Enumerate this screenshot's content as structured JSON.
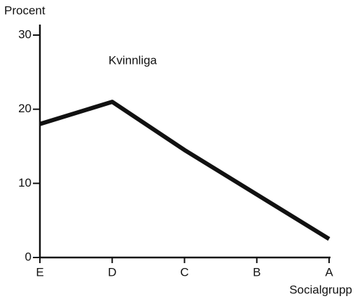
{
  "chart_data": {
    "type": "line",
    "y_label": "Procent",
    "x_label": "Socialgrupp",
    "annotation": "Kvinnliga",
    "categories": [
      "E",
      "D",
      "C",
      "B",
      "A"
    ],
    "series": [
      {
        "name": "Kvinnliga",
        "color": "#111111",
        "values": [
          18,
          21,
          14.5,
          8.5,
          2.5
        ]
      }
    ],
    "ylim": [
      0,
      30
    ],
    "yticks": [
      0,
      10,
      20,
      30
    ]
  }
}
